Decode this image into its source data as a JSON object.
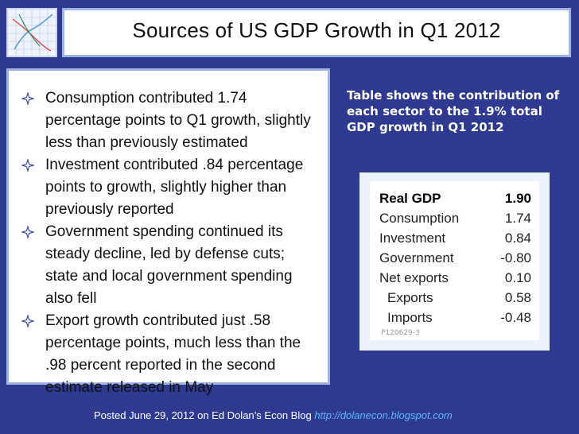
{
  "slide": {
    "title": "Sources of US GDP Growth in Q1 2012",
    "bullets": [
      "Consumption contributed 1.74  percentage points to Q1 growth, slightly less than previously estimated",
      "Investment contributed .84 percentage points to growth, slightly higher than previously reported",
      "Government spending continued its steady decline, led by defense cuts; state and local government spending also fell",
      "Export growth contributed just .58 percentage points, much less than the .98 percent reported in the second estimate released in May"
    ],
    "side_note": "Table shows the contribution of each sector to the 1.9% total GDP growth in Q1 2012",
    "table": {
      "header": {
        "label": "Real GDP",
        "value": "1.90"
      },
      "rows": [
        {
          "label": "Consumption",
          "value": "1.74"
        },
        {
          "label": "Investment",
          "value": "0.84"
        },
        {
          "label": "Government",
          "value": "-0.80"
        },
        {
          "label": "Net exports",
          "value": "0.10"
        },
        {
          "label": "Exports",
          "value": "0.58"
        },
        {
          "label": "Imports",
          "value": "-0.48"
        }
      ],
      "code": "P120629-3"
    },
    "footer": {
      "text": "Posted June 29, 2012 on Ed Dolan’s Econ Blog",
      "link": "http://dolanecon.blogspot.com"
    }
  },
  "colors": {
    "background": "#2e3a8f",
    "panel_border": "#9db4e4",
    "link": "#5fb6ff"
  },
  "icons": {
    "bullet": "four-point-star-icon",
    "logo": "graph-sketch-logo-icon"
  }
}
